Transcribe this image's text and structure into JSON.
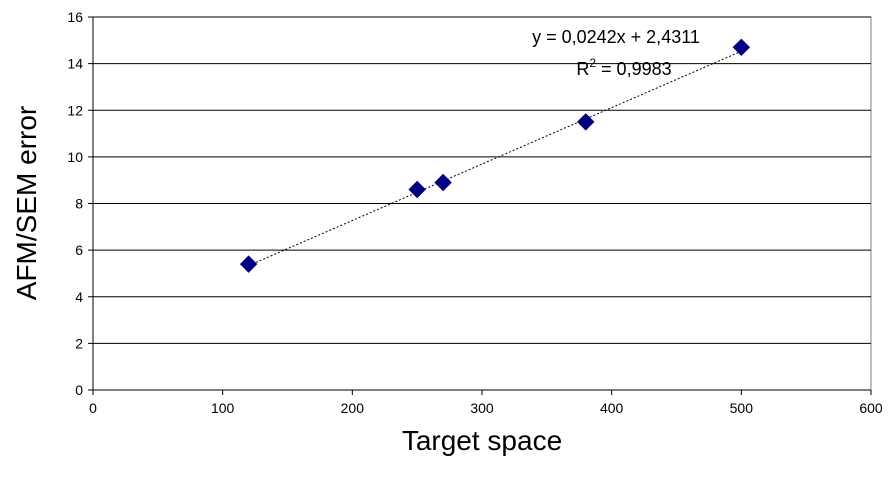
{
  "chart_data": {
    "type": "scatter",
    "title": "",
    "xlabel": "Target space",
    "ylabel": "AFM/SEM error",
    "xlim": [
      0,
      600
    ],
    "ylim": [
      0,
      16
    ],
    "x_ticks": [
      0,
      100,
      200,
      300,
      400,
      500,
      600
    ],
    "y_ticks": [
      0,
      2,
      4,
      6,
      8,
      10,
      12,
      14,
      16
    ],
    "grid": {
      "horizontal": true,
      "vertical": false
    },
    "series": [
      {
        "marker": "diamond",
        "color": "#000080",
        "points": [
          {
            "x": 120,
            "y": 5.4
          },
          {
            "x": 250,
            "y": 8.6
          },
          {
            "x": 270,
            "y": 8.9
          },
          {
            "x": 380,
            "y": 11.5
          },
          {
            "x": 500,
            "y": 14.7
          }
        ]
      }
    ],
    "trendline": {
      "type": "linear",
      "style": "dotted",
      "slope": 0.0242,
      "intercept": 2.4311,
      "x_range": [
        120,
        500
      ],
      "equation_label": "y = 0,0242x + 2,4311",
      "r_squared_prefix": "R",
      "r_squared_sup": "2",
      "r_squared_value": " = 0,9983"
    }
  }
}
